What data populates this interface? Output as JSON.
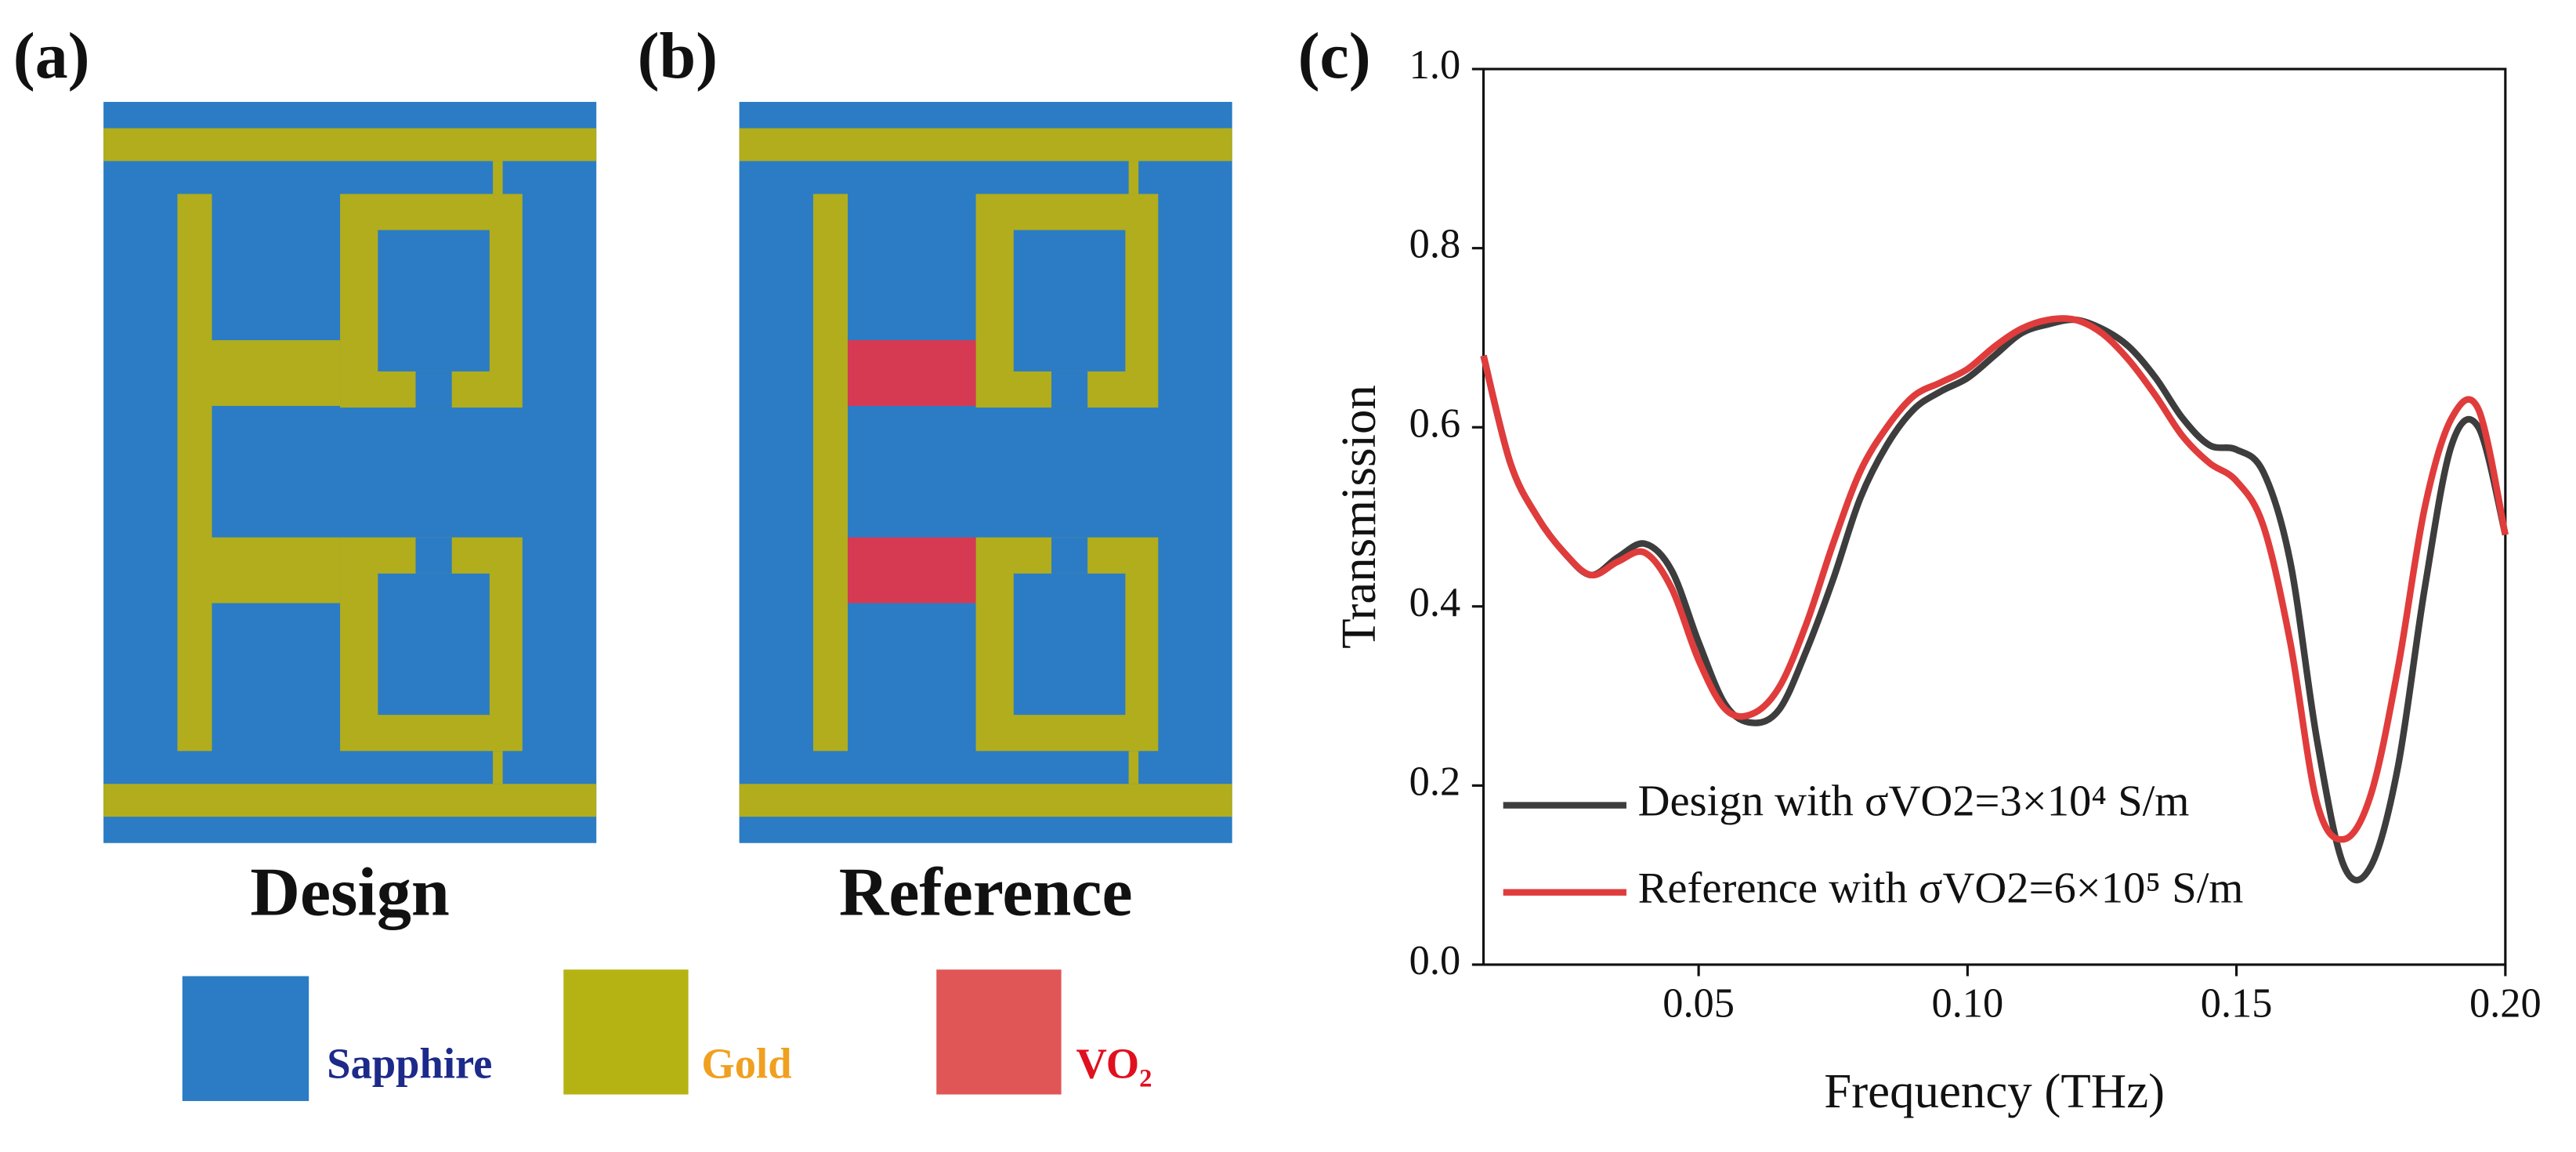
{
  "panels": {
    "labels": [
      "(a)",
      "(b)",
      "(c)"
    ],
    "diagram_titles": [
      "Design",
      "Reference"
    ],
    "materials": [
      "Sapphire",
      "Gold",
      "VO₂"
    ]
  },
  "chart_data": {
    "type": "line",
    "xlabel": "Frequency (THz)",
    "ylabel": "Transmission",
    "x": [
      0.01,
      0.015,
      0.02,
      0.025,
      0.03,
      0.035,
      0.04,
      0.045,
      0.05,
      0.055,
      0.06,
      0.065,
      0.07,
      0.075,
      0.08,
      0.085,
      0.09,
      0.095,
      0.1,
      0.105,
      0.11,
      0.115,
      0.12,
      0.125,
      0.13,
      0.135,
      0.14,
      0.145,
      0.15,
      0.155,
      0.16,
      0.165,
      0.17,
      0.175,
      0.18,
      0.185,
      0.19,
      0.195,
      0.2
    ],
    "series": [
      {
        "name": "Design with σVO2=3×10⁴ S/m",
        "color": "#3d3d3d",
        "values": [
          0.68,
          0.56,
          0.5,
          0.46,
          0.435,
          0.455,
          0.47,
          0.44,
          0.36,
          0.29,
          0.27,
          0.285,
          0.35,
          0.43,
          0.52,
          0.58,
          0.62,
          0.64,
          0.655,
          0.68,
          0.705,
          0.715,
          0.72,
          0.71,
          0.69,
          0.655,
          0.61,
          0.58,
          0.575,
          0.55,
          0.45,
          0.25,
          0.11,
          0.11,
          0.22,
          0.42,
          0.58,
          0.6,
          0.48
        ]
      },
      {
        "name": "Reference with σVO2=6×10⁵ S/m",
        "color": "#e03c3c",
        "values": [
          0.68,
          0.56,
          0.5,
          0.46,
          0.435,
          0.45,
          0.46,
          0.42,
          0.34,
          0.285,
          0.28,
          0.31,
          0.38,
          0.47,
          0.55,
          0.6,
          0.635,
          0.65,
          0.665,
          0.69,
          0.71,
          0.72,
          0.72,
          0.705,
          0.675,
          0.635,
          0.59,
          0.56,
          0.54,
          0.49,
          0.36,
          0.18,
          0.14,
          0.19,
          0.33,
          0.51,
          0.61,
          0.62,
          0.48
        ]
      }
    ],
    "xlim": [
      0.01,
      0.2
    ],
    "ylim": [
      0,
      1
    ],
    "xticks": [
      0.05,
      {
        "value": 0.1,
        "label": "0.10"
      },
      0.15,
      {
        "value": 0.2,
        "label": "0.20"
      }
    ],
    "yticks": [
      {
        "value": 0,
        "label": "0.0"
      },
      0.2,
      0.4,
      0.6,
      0.8,
      {
        "value": 1,
        "label": "1.0"
      }
    ],
    "legend": "lower-left"
  }
}
